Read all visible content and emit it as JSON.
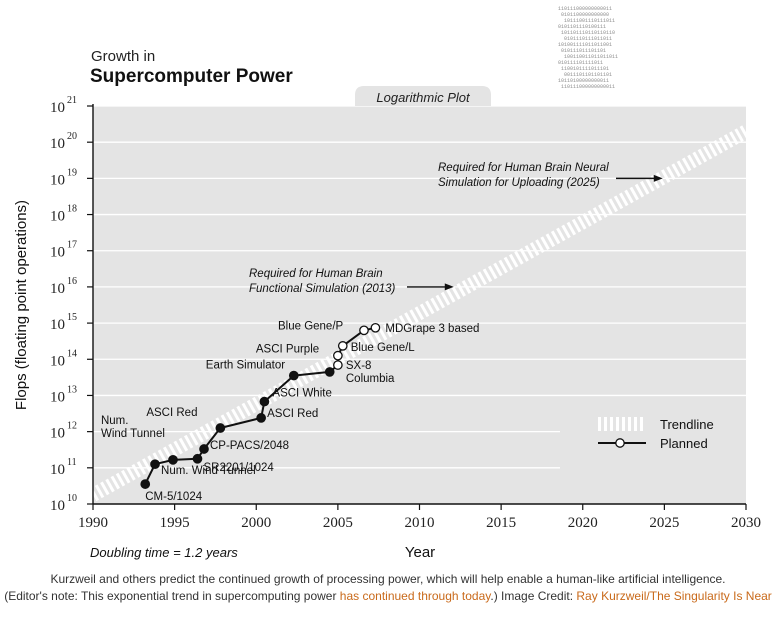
{
  "chart_data": {
    "type": "line",
    "title_line1": "Growth in",
    "title_line2": "Supercomputer Power",
    "plot_label": "Logarithmic Plot",
    "xlabel": "Year",
    "ylabel": "Flops (floating point operations)",
    "xlim": [
      1990,
      2030
    ],
    "x_ticks": [
      1990,
      1995,
      2000,
      2005,
      2010,
      2015,
      2020,
      2025,
      2030
    ],
    "y_scale": "log",
    "ylim_exponent": [
      10,
      21
    ],
    "y_tick_base": "10",
    "y_tick_exponents": [
      10,
      11,
      12,
      13,
      14,
      15,
      16,
      17,
      18,
      19,
      20,
      21
    ],
    "grid": "horizontal",
    "trendline": {
      "x": [
        1990,
        2030
      ],
      "y_exponent": [
        10.25,
        20.3
      ]
    },
    "series": [
      {
        "name": "Planned",
        "points": [
          {
            "x": 1993.2,
            "y_exp": 10.55,
            "label": "CM-5/1024",
            "filled": true
          },
          {
            "x": 1993.8,
            "y_exp": 11.1,
            "label": "Num. Wind Tunnel",
            "filled": true
          },
          {
            "x": 1994.9,
            "y_exp": 11.22,
            "label": "Num.\nWind Tunnel",
            "filled": true
          },
          {
            "x": 1996.4,
            "y_exp": 11.25,
            "label": "SR2201/1024",
            "filled": true
          },
          {
            "x": 1996.8,
            "y_exp": 11.52,
            "label": "CP-PACS/2048",
            "filled": true
          },
          {
            "x": 1997.8,
            "y_exp": 12.1,
            "label": "ASCI Red",
            "filled": true
          },
          {
            "x": 2000.3,
            "y_exp": 12.38,
            "label": "ASCI Red",
            "filled": true
          },
          {
            "x": 2000.5,
            "y_exp": 12.83,
            "label": "ASCI White",
            "filled": true
          },
          {
            "x": 2002.3,
            "y_exp": 13.55,
            "label": "Earth Simulator",
            "filled": true
          },
          {
            "x": 2004.5,
            "y_exp": 13.65,
            "label": "",
            "filled": true
          },
          {
            "x": 2005.0,
            "y_exp": 13.84,
            "label": "SX-8\nColumbia",
            "filled": false
          },
          {
            "x": 2005.0,
            "y_exp": 14.1,
            "label": "ASCI Purple",
            "filled": false
          },
          {
            "x": 2005.3,
            "y_exp": 14.37,
            "label": "Blue Gene/L",
            "filled": false
          },
          {
            "x": 2006.6,
            "y_exp": 14.8,
            "label": "Blue Gene/P",
            "filled": false
          },
          {
            "x": 2007.3,
            "y_exp": 14.87,
            "label": "MDGrape 3 based",
            "filled": false
          }
        ]
      }
    ],
    "annotations": [
      {
        "text": [
          "Required for Human Brain",
          "Functional Simulation (2013)"
        ],
        "target_x": 2012.1,
        "target_y_exp": 16.0
      },
      {
        "text": [
          "Required for Human Brain Neural",
          "Simulation for Uploading (2025)"
        ],
        "target_x": 2024.9,
        "target_y_exp": 19.0
      }
    ],
    "legend": {
      "position": "bottom-right",
      "items": [
        "Trendline",
        "Planned"
      ]
    },
    "footnote": "Doubling time = 1.2 years"
  },
  "binary_art": [
    "110111000000000011",
    "0101100000000000",
    "10111001110111011",
    "0101101110100111",
    "101101110110110110",
    "0101110111011011",
    "101001111011011001",
    "010111011101101",
    "100110011011011011",
    "010111101111011",
    "1100101111011101",
    "0011101101101101",
    "10110100000000011",
    "110111000000000011"
  ],
  "caption": {
    "part1": "Kurzweil and others predict the continued growth of processing power, which will help enable a human-like artificial intelligence.",
    "part2": "(Editor's note: This exponential trend in supercomputing power ",
    "link1": "has continued through today",
    "part3": ".) Image Credit: ",
    "link2": "Ray Kurzweil/The Singularity Is Near",
    "link_color": "#c96a1b"
  },
  "colors": {
    "plot_bg": "#e4e4e4",
    "grid": "#ffffff",
    "line": "#111111",
    "trend": "#ffffff"
  }
}
